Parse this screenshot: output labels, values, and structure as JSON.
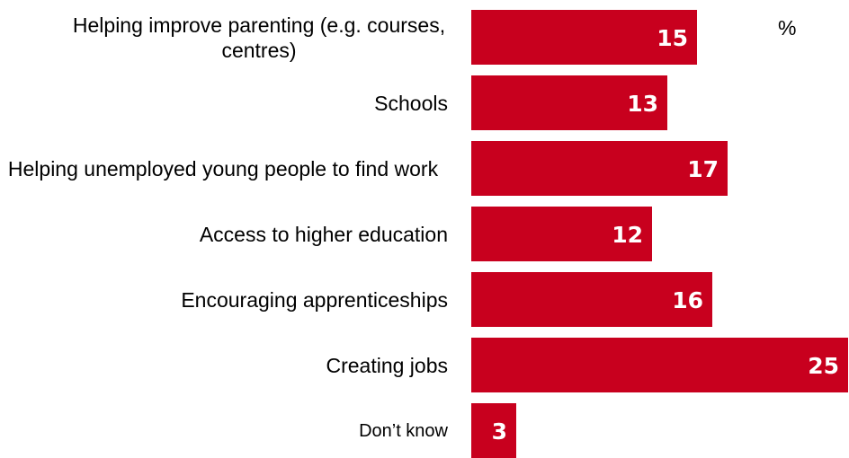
{
  "chart_data": {
    "type": "bar",
    "orientation": "horizontal",
    "unit_label": "%",
    "bar_color": "#c8001e",
    "label_color": "#ffffff",
    "xlim": [
      0,
      25
    ],
    "categories": [
      "Helping improve parenting (e.g. courses, centres)",
      "Schools",
      "Helping unemployed young people to find work",
      "Access to higher education",
      "Encouraging apprenticeships",
      "Creating jobs",
      "Don’t know"
    ],
    "values": [
      15,
      13,
      17,
      12,
      16,
      25,
      3
    ],
    "grid": false,
    "legend": false
  }
}
